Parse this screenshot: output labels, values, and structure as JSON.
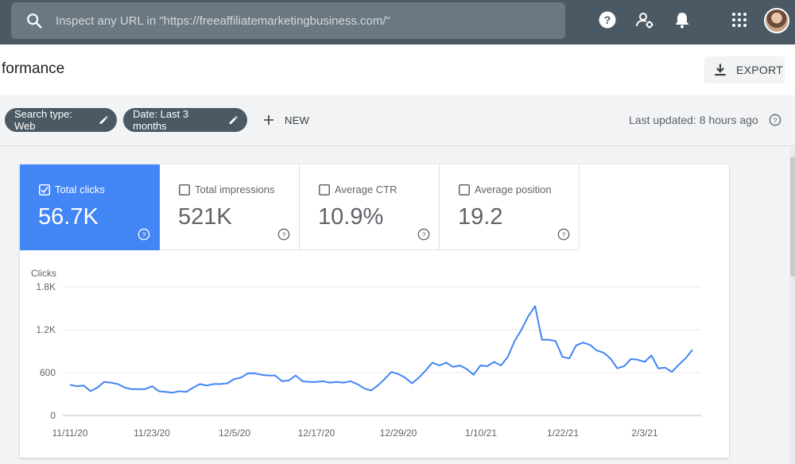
{
  "search": {
    "placeholder": "Inspect any URL in \"https://freeaffiliatemarketingbusiness.com/\""
  },
  "header": {
    "title": "formance",
    "export_label": "EXPORT"
  },
  "filters": {
    "chips": [
      {
        "label": "Search type: Web"
      },
      {
        "label": "Date: Last 3 months"
      }
    ],
    "new_label": "NEW",
    "last_updated": "Last updated: 8 hours ago"
  },
  "metrics": [
    {
      "label": "Total clicks",
      "value": "56.7K",
      "checked": true
    },
    {
      "label": "Total impressions",
      "value": "521K",
      "checked": false
    },
    {
      "label": "Average CTR",
      "value": "10.9%",
      "checked": false
    },
    {
      "label": "Average position",
      "value": "19.2",
      "checked": false
    }
  ],
  "colors": {
    "topbar": "#4a5963",
    "accent": "#4285f4",
    "line": "#4285f4"
  },
  "icons": [
    "search-icon",
    "help-icon",
    "admin-icon",
    "bell-icon",
    "apps-grid-icon",
    "download-icon",
    "pencil-icon",
    "plus-icon",
    "help-outline-icon",
    "checkbox-icon"
  ],
  "chart_data": {
    "type": "line",
    "ylabel": "Clicks",
    "yticks": [
      "0",
      "600",
      "1.2K",
      "1.8K"
    ],
    "ylim": [
      0,
      1800
    ],
    "grid": true,
    "xticks": [
      "11/11/20",
      "11/23/20",
      "12/5/20",
      "12/17/20",
      "12/29/20",
      "1/10/21",
      "1/22/21",
      "2/3/21"
    ],
    "x_start": "11/10/20",
    "x_end": "2/13/21",
    "series": [
      {
        "values": [
          430,
          410,
          420,
          340,
          390,
          470,
          460,
          440,
          390,
          370,
          370,
          370,
          410,
          340,
          330,
          320,
          340,
          330,
          390,
          440,
          420,
          440,
          440,
          450,
          510,
          530,
          590,
          590,
          570,
          560,
          560,
          480,
          490,
          560,
          480,
          470,
          470,
          480,
          460,
          470,
          460,
          480,
          440,
          380,
          350,
          420,
          510,
          610,
          580,
          530,
          450,
          530,
          630,
          740,
          700,
          740,
          680,
          700,
          650,
          570,
          700,
          690,
          750,
          700,
          820,
          1040,
          1200,
          1390,
          1530,
          1060,
          1060,
          1040,
          820,
          800,
          980,
          1020,
          990,
          910,
          880,
          800,
          660,
          690,
          790,
          780,
          750,
          840,
          660,
          670,
          610,
          710,
          800,
          920
        ]
      }
    ]
  }
}
